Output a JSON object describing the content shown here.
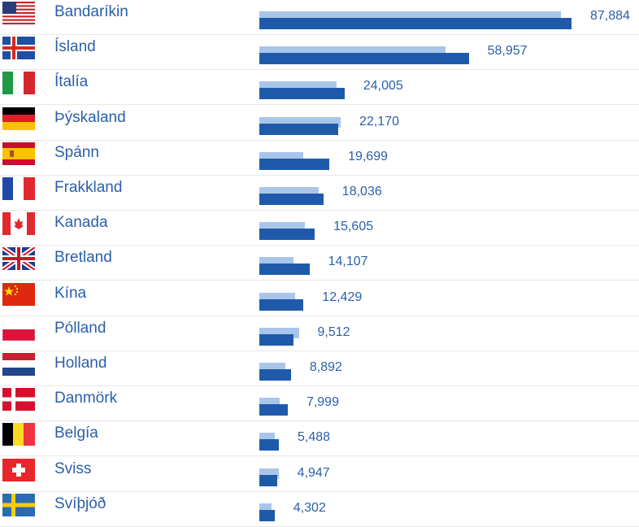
{
  "chart_data": {
    "type": "bar",
    "orientation": "horizontal",
    "categories": [
      "Bandaríkin",
      "Ísland",
      "Ítalía",
      "Þýskaland",
      "Spánn",
      "Frakkland",
      "Kanada",
      "Bretland",
      "Kína",
      "Pólland",
      "Holland",
      "Danmörk",
      "Belgía",
      "Sviss",
      "Svíþjóð"
    ],
    "flags": [
      "flag-usa",
      "flag-iceland",
      "flag-italy",
      "flag-germany",
      "flag-spain",
      "flag-france",
      "flag-canada",
      "flag-uk",
      "flag-china",
      "flag-poland",
      "flag-netherlands",
      "flag-denmark",
      "flag-belgium",
      "flag-switzerland",
      "flag-sweden"
    ],
    "series": [
      {
        "values": [
          87884,
          58957,
          24005,
          22170,
          19699,
          18036,
          15605,
          14107,
          12429,
          9512,
          8892,
          7999,
          5488,
          4947,
          4302
        ],
        "color": "#1f5aaa"
      },
      {
        "values": [
          85000,
          52500,
          21800,
          22900,
          12300,
          16800,
          12800,
          9600,
          10100,
          11100,
          7400,
          5800,
          4400,
          5400,
          3400
        ],
        "color": "#a9c6ea"
      }
    ],
    "value_labels": [
      "87,884",
      "58,957",
      "24,005",
      "22,170",
      "19,699",
      "18,036",
      "15,605",
      "14,107",
      "12,429",
      "9,512",
      "8,892",
      "7,999",
      "5,488",
      "4,947",
      "4,302"
    ],
    "xlim": [
      0,
      87884
    ]
  }
}
